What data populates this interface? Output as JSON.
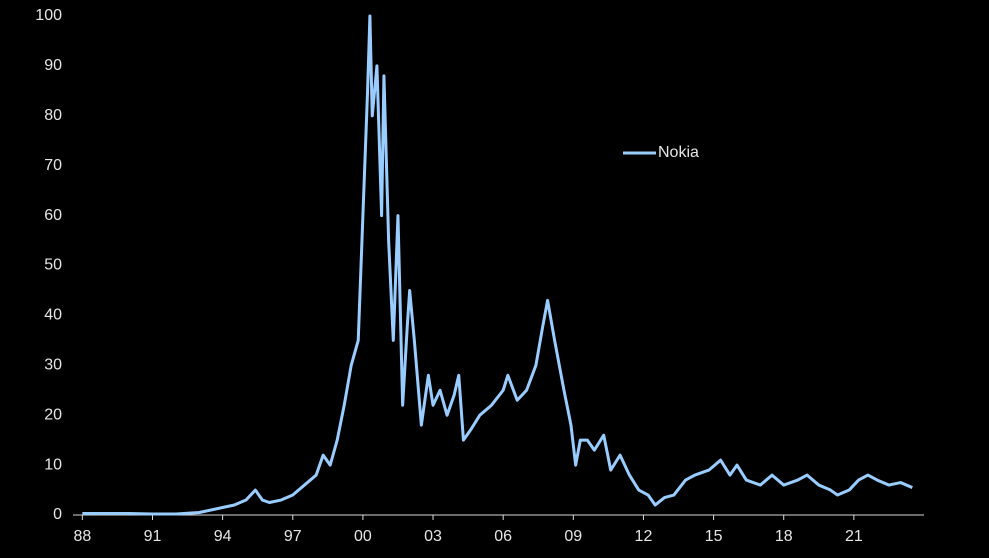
{
  "chart_data": {
    "type": "line",
    "x": [
      1988,
      1989,
      1990,
      1991,
      1992,
      1993,
      1994,
      1994.5,
      1995,
      1995.4,
      1995.7,
      1996,
      1996.5,
      1997,
      1997.5,
      1998,
      1998.3,
      1998.6,
      1998.9,
      1999.2,
      1999.5,
      1999.8,
      2000,
      2000.2,
      2000.3,
      2000.4,
      2000.6,
      2000.8,
      2000.9,
      2001.1,
      2001.3,
      2001.5,
      2001.7,
      2001.9,
      2002,
      2002.2,
      2002.5,
      2002.8,
      2003,
      2003.3,
      2003.6,
      2003.9,
      2004.1,
      2004.3,
      2004.6,
      2005,
      2005.5,
      2006,
      2006.2,
      2006.6,
      2007,
      2007.4,
      2007.7,
      2007.9,
      2008.2,
      2008.6,
      2008.9,
      2009.1,
      2009.3,
      2009.6,
      2009.9,
      2010.3,
      2010.6,
      2011,
      2011.4,
      2011.8,
      2012.2,
      2012.5,
      2012.9,
      2013.3,
      2013.8,
      2014.2,
      2014.8,
      2015.3,
      2015.7,
      2016,
      2016.4,
      2017,
      2017.5,
      2018,
      2018.6,
      2019,
      2019.5,
      2020,
      2020.3,
      2020.8,
      2021.2,
      2021.6,
      2022,
      2022.5,
      2023,
      2023.5
    ],
    "series": [
      {
        "name": "Nokia",
        "color": "#99ccff",
        "values": [
          0.3,
          0.3,
          0.3,
          0.2,
          0.2,
          0.5,
          1.5,
          2,
          3,
          5,
          3,
          2.5,
          3,
          4,
          6,
          8,
          12,
          10,
          15,
          22,
          30,
          35,
          60,
          85,
          100,
          80,
          90,
          60,
          88,
          55,
          35,
          60,
          22,
          38,
          45,
          35,
          18,
          28,
          22,
          25,
          20,
          24,
          28,
          15,
          17,
          20,
          22,
          25,
          28,
          23,
          25,
          30,
          38,
          43,
          35,
          25,
          18,
          10,
          15,
          15,
          13,
          16,
          9,
          12,
          8,
          5,
          4,
          2,
          3.5,
          4,
          7,
          8,
          9,
          11,
          8,
          10,
          7,
          6,
          8,
          6,
          7,
          8,
          6,
          5,
          4,
          5,
          7,
          8,
          7,
          6,
          6.5,
          5.5
        ]
      }
    ],
    "xlim": [
      1987.6,
      2024.0
    ],
    "xticks": [
      {
        "value": 1988,
        "label": "88"
      },
      {
        "value": 1991,
        "label": "91"
      },
      {
        "value": 1994,
        "label": "94"
      },
      {
        "value": 1997,
        "label": "97"
      },
      {
        "value": 2000,
        "label": "00"
      },
      {
        "value": 2003,
        "label": "03"
      },
      {
        "value": 2006,
        "label": "06"
      },
      {
        "value": 2009,
        "label": "09"
      },
      {
        "value": 2012,
        "label": "12"
      },
      {
        "value": 2015,
        "label": "15"
      },
      {
        "value": 2018,
        "label": "18"
      },
      {
        "value": 2021,
        "label": "21"
      }
    ],
    "ylim": [
      0,
      100
    ],
    "yticks": [
      0,
      10,
      20,
      30,
      40,
      50,
      60,
      70,
      80,
      90,
      100
    ],
    "grid": false
  }
}
